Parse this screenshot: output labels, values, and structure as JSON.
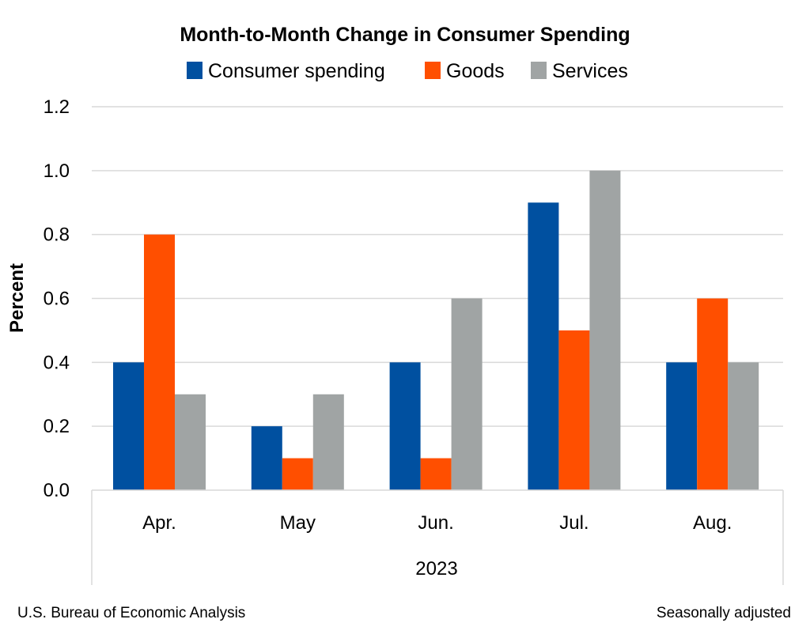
{
  "chart_data": {
    "type": "bar",
    "title": "Month-to-Month Change in Consumer Spending",
    "ylabel": "Percent",
    "xlabel": "2023",
    "ylim": [
      0,
      1.2
    ],
    "yticks": [
      "0.0",
      "0.2",
      "0.4",
      "0.6",
      "0.8",
      "1.0",
      "1.2"
    ],
    "grid": true,
    "legend_position": "top",
    "categories": [
      "Apr.",
      "May",
      "Jun.",
      "Jul.",
      "Aug."
    ],
    "series": [
      {
        "name": "Consumer spending",
        "color": "#0050a0",
        "values": [
          0.4,
          0.2,
          0.4,
          0.9,
          0.4
        ]
      },
      {
        "name": "Goods",
        "color": "#ff4f00",
        "values": [
          0.8,
          0.1,
          0.1,
          0.5,
          0.6
        ]
      },
      {
        "name": "Services",
        "color": "#a0a4a4",
        "values": [
          0.3,
          0.3,
          0.6,
          1.0,
          0.4
        ]
      }
    ]
  },
  "footer": {
    "source": "U.S. Bureau of Economic Analysis",
    "note": "Seasonally adjusted"
  }
}
